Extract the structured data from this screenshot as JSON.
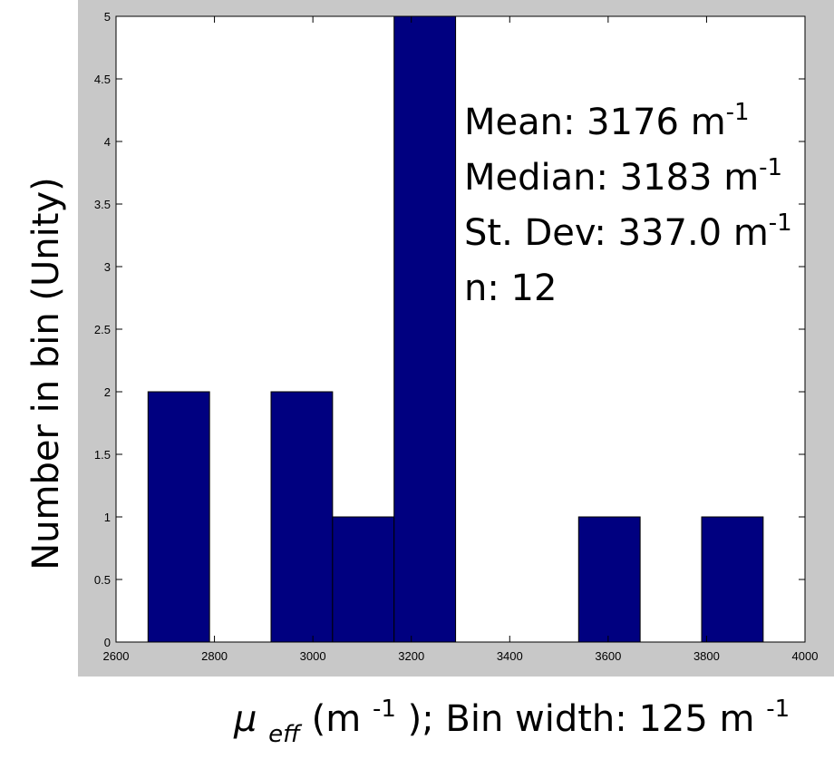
{
  "chart_data": {
    "type": "bar",
    "bin_width": 125,
    "bin_starts": [
      2665,
      2790,
      2915,
      3040,
      3165,
      3290,
      3415,
      3540,
      3665,
      3790
    ],
    "values": [
      2,
      0,
      2,
      1,
      5,
      0,
      0,
      1,
      0,
      1
    ],
    "xlim": [
      2600,
      4000
    ],
    "ylim": [
      0,
      5
    ],
    "x_ticks": [
      "2600",
      "2800",
      "3000",
      "3200",
      "3400",
      "3600",
      "3800",
      "4000"
    ],
    "y_ticks": [
      "0",
      "0.5",
      "1",
      "1.5",
      "2",
      "2.5",
      "3",
      "3.5",
      "4",
      "4.5",
      "5"
    ],
    "ylabel": "Number in bin (Unity)",
    "xlabel": {
      "symbol": "μ",
      "subscript": "eff",
      "unit_open": " (m",
      "unit_exp": "-1",
      "unit_close": "); Bin width: 125 m",
      "bin_exp": "-1"
    },
    "annotation": [
      {
        "text": "Mean: 3176 m",
        "exp": "-1"
      },
      {
        "text": "Median: 3183 m",
        "exp": "-1"
      },
      {
        "text": "St. Dev: 337.0 m",
        "exp": "-1"
      },
      {
        "text": "n: 12",
        "exp": ""
      }
    ],
    "colors": {
      "bar": "#000080",
      "figure_background": "#c8c8c8",
      "plot_background": "#ffffff"
    }
  }
}
